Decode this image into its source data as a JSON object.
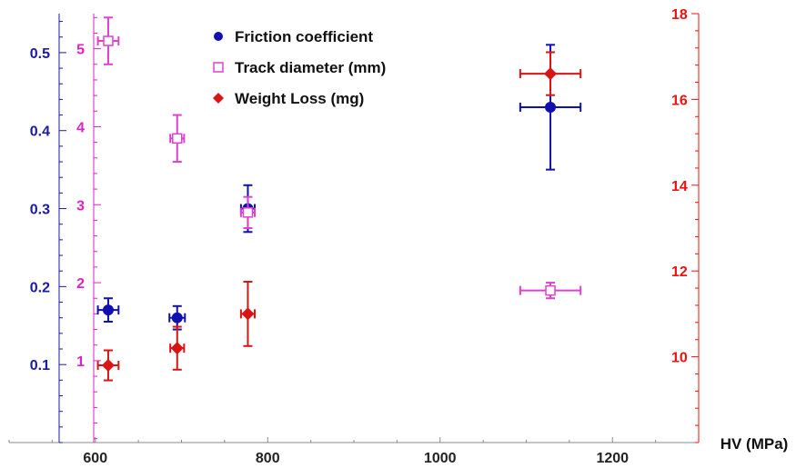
{
  "chart_data": {
    "type": "scatter",
    "xlabel": "HV (MPa)",
    "xlim": [
      500,
      1300
    ],
    "xticks": [
      600,
      800,
      1000,
      1200
    ],
    "legend_position": "top-center",
    "grid": false,
    "axes": [
      {
        "id": "friction",
        "side": "left-outer",
        "ylim": [
          0,
          0.55
        ],
        "ticks": [
          0.1,
          0.2,
          0.3,
          0.4,
          0.5
        ],
        "tick_labels": [
          "0.1",
          "0.2",
          "0.3",
          "0.4",
          "0.5"
        ],
        "color": "#1a1aa6"
      },
      {
        "id": "track",
        "side": "left-inner",
        "ylim": [
          -0.05,
          5.45
        ],
        "ticks": [
          1,
          2,
          3,
          4,
          5
        ],
        "tick_labels": [
          "1",
          "2",
          "3",
          "4",
          "5"
        ],
        "color": "#e020c8"
      },
      {
        "id": "weight",
        "side": "right",
        "ylim": [
          8,
          18
        ],
        "ticks": [
          10,
          12,
          14,
          16,
          18
        ],
        "tick_labels": [
          "10",
          "12",
          "14",
          "16",
          "18"
        ],
        "color": "#ee1111"
      }
    ],
    "series": [
      {
        "name": "Friction coefficient",
        "axis": "friction",
        "marker": "circle",
        "color": "#1010b0",
        "points": [
          {
            "x": 615,
            "y": 0.17,
            "xerr": 12,
            "yerr": 0.015
          },
          {
            "x": 695,
            "y": 0.16,
            "xerr": 9,
            "yerr": 0.015
          },
          {
            "x": 777,
            "y": 0.3,
            "xerr": 8,
            "yerr": 0.03
          },
          {
            "x": 1128,
            "y": 0.43,
            "xerr": 35,
            "yerr": 0.08
          }
        ]
      },
      {
        "name": "Track diameter (mm)",
        "axis": "track",
        "marker": "open-square",
        "color": "#e040d0",
        "points": [
          {
            "x": 615,
            "y": 5.1,
            "xerr": 12,
            "yerr": 0.3
          },
          {
            "x": 695,
            "y": 3.85,
            "xerr": 8,
            "yerr": 0.3
          },
          {
            "x": 777,
            "y": 2.9,
            "xerr": 8,
            "yerr": 0.2
          },
          {
            "x": 1128,
            "y": 1.9,
            "xerr": 35,
            "yerr": 0.1
          }
        ]
      },
      {
        "name": "Weight Loss (mg)",
        "axis": "weight",
        "marker": "diamond",
        "color": "#d81414",
        "points": [
          {
            "x": 615,
            "y": 9.8,
            "xerr": 12,
            "yerr": 0.35
          },
          {
            "x": 695,
            "y": 10.2,
            "xerr": 8,
            "yerr": 0.5
          },
          {
            "x": 777,
            "y": 11.0,
            "xerr": 8,
            "yerr": 0.75
          },
          {
            "x": 1128,
            "y": 16.6,
            "xerr": 35,
            "yerr": 0.5
          }
        ]
      }
    ]
  }
}
